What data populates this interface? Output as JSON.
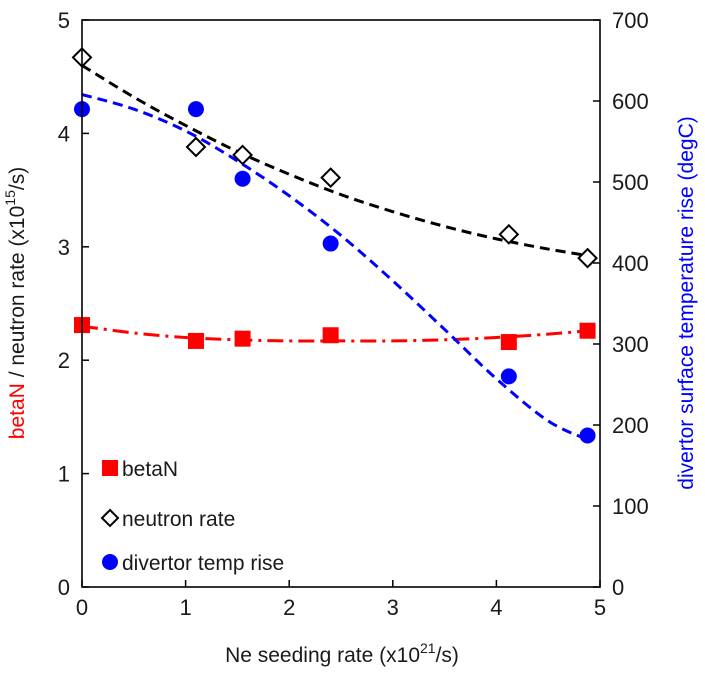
{
  "chart_data": {
    "type": "scatter",
    "x_axis": {
      "label_prefix": "Ne seeding rate (x10",
      "label_exp": "21",
      "label_suffix": "/s)",
      "range": [
        0,
        5
      ],
      "ticks": [
        "0",
        "1",
        "2",
        "3",
        "4",
        "5"
      ]
    },
    "y_left": {
      "label_part1": "betaN",
      "label_part2": " / neutron rate (x10",
      "label_exp": "15",
      "label_suffix": "/s)",
      "range": [
        0,
        5
      ],
      "ticks": [
        "0",
        "1",
        "2",
        "3",
        "4",
        "5"
      ],
      "color_part1": "#ff0000",
      "color_part2": "#1a1a1a"
    },
    "y_right": {
      "label": "divertor surface temperature rise (degC)",
      "range": [
        0,
        700
      ],
      "ticks": [
        "0",
        "100",
        "200",
        "300",
        "400",
        "500",
        "600",
        "700"
      ],
      "color": "#0000ff"
    },
    "series": [
      {
        "name": "betaN",
        "axis": "left",
        "marker": "square",
        "color": "#ff0000",
        "fit_style": "dashdot",
        "x": [
          0,
          1.1,
          1.55,
          2.4,
          4.12,
          4.88
        ],
        "y": [
          2.31,
          2.17,
          2.19,
          2.22,
          2.16,
          2.26
        ],
        "fit": [
          [
            0,
            2.3
          ],
          [
            0.5,
            2.24
          ],
          [
            1.0,
            2.2
          ],
          [
            1.5,
            2.18
          ],
          [
            2.0,
            2.17
          ],
          [
            2.5,
            2.17
          ],
          [
            3.0,
            2.17
          ],
          [
            3.5,
            2.18
          ],
          [
            4.0,
            2.2
          ],
          [
            4.5,
            2.23
          ],
          [
            4.9,
            2.26
          ]
        ]
      },
      {
        "name": "neutron rate",
        "axis": "left",
        "marker": "diamond",
        "color": "#000000",
        "fit_style": "dashed",
        "x": [
          0,
          1.1,
          1.55,
          2.4,
          4.12,
          4.88
        ],
        "y": [
          4.67,
          3.88,
          3.81,
          3.61,
          3.11,
          2.9
        ],
        "fit": [
          [
            0,
            4.6
          ],
          [
            0.5,
            4.32
          ],
          [
            1.0,
            4.07
          ],
          [
            1.5,
            3.84
          ],
          [
            2.0,
            3.64
          ],
          [
            2.5,
            3.46
          ],
          [
            3.0,
            3.31
          ],
          [
            3.5,
            3.18
          ],
          [
            4.0,
            3.07
          ],
          [
            4.5,
            2.98
          ],
          [
            4.9,
            2.92
          ]
        ]
      },
      {
        "name": "divertor temp rise",
        "axis": "right",
        "marker": "circle",
        "color": "#0000ff",
        "fit_style": "dashed",
        "x": [
          0,
          1.1,
          1.55,
          2.4,
          4.12,
          4.88
        ],
        "y": [
          590,
          590,
          504,
          424,
          260,
          187
        ],
        "fit": [
          [
            0,
            608
          ],
          [
            0.5,
            590
          ],
          [
            1.0,
            563
          ],
          [
            1.5,
            526
          ],
          [
            2.0,
            483
          ],
          [
            2.5,
            434
          ],
          [
            3.0,
            378
          ],
          [
            3.5,
            318
          ],
          [
            4.0,
            257
          ],
          [
            4.5,
            205
          ],
          [
            4.9,
            181
          ]
        ]
      }
    ],
    "legend": {
      "position": "bottom-left",
      "items": [
        "betaN",
        "neutron rate",
        "divertor temp rise"
      ]
    },
    "grid": false
  }
}
